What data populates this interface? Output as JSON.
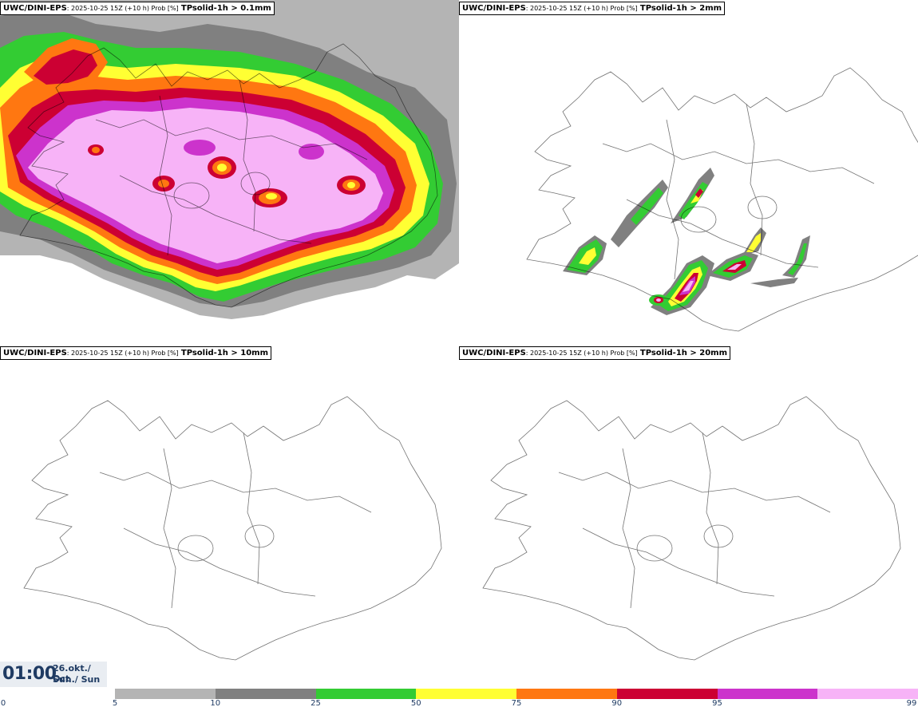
{
  "panels": [
    {
      "model": "UWC/DINI-EPS",
      "run": ": 2025-10-25 15Z (+10 h) Prob [%]",
      "variable": "TPsolid-1h > 0.1mm",
      "coverage": "full"
    },
    {
      "model": "UWC/DINI-EPS",
      "run": ": 2025-10-25 15Z (+10 h) Prob [%]",
      "variable": "TPsolid-1h > 2mm",
      "coverage": "south-streaks"
    },
    {
      "model": "UWC/DINI-EPS",
      "run": ": 2025-10-25 15Z (+10 h) Prob [%]",
      "variable": "TPsolid-1h > 10mm",
      "coverage": "none"
    },
    {
      "model": "UWC/DINI-EPS",
      "run": ": 2025-10-25 15Z (+10 h) Prob [%]",
      "variable": "TPsolid-1h > 20mm",
      "coverage": "none"
    }
  ],
  "valid_time": {
    "hour": "01:00",
    "date": "26.okt./ Oct",
    "weekday": "Sun./ Sun"
  },
  "legend": {
    "tick_labels": [
      "0",
      "5",
      "10",
      "25",
      "50",
      "75",
      "90",
      "95",
      "99"
    ],
    "colors": [
      "#b4b4b4",
      "#808080",
      "#33cc33",
      "#ffff33",
      "#ff7711",
      "#cc0033",
      "#cc33cc",
      "#f7b3f7"
    ]
  },
  "map_colors": {
    "coast": "#000000",
    "gray_light": "#b4b4b4",
    "gray_dark": "#808080",
    "green": "#33cc33",
    "yellow": "#ffff33",
    "orange": "#ff7711",
    "red": "#cc0033",
    "magenta": "#cc33cc",
    "pink": "#f7b3f7"
  }
}
